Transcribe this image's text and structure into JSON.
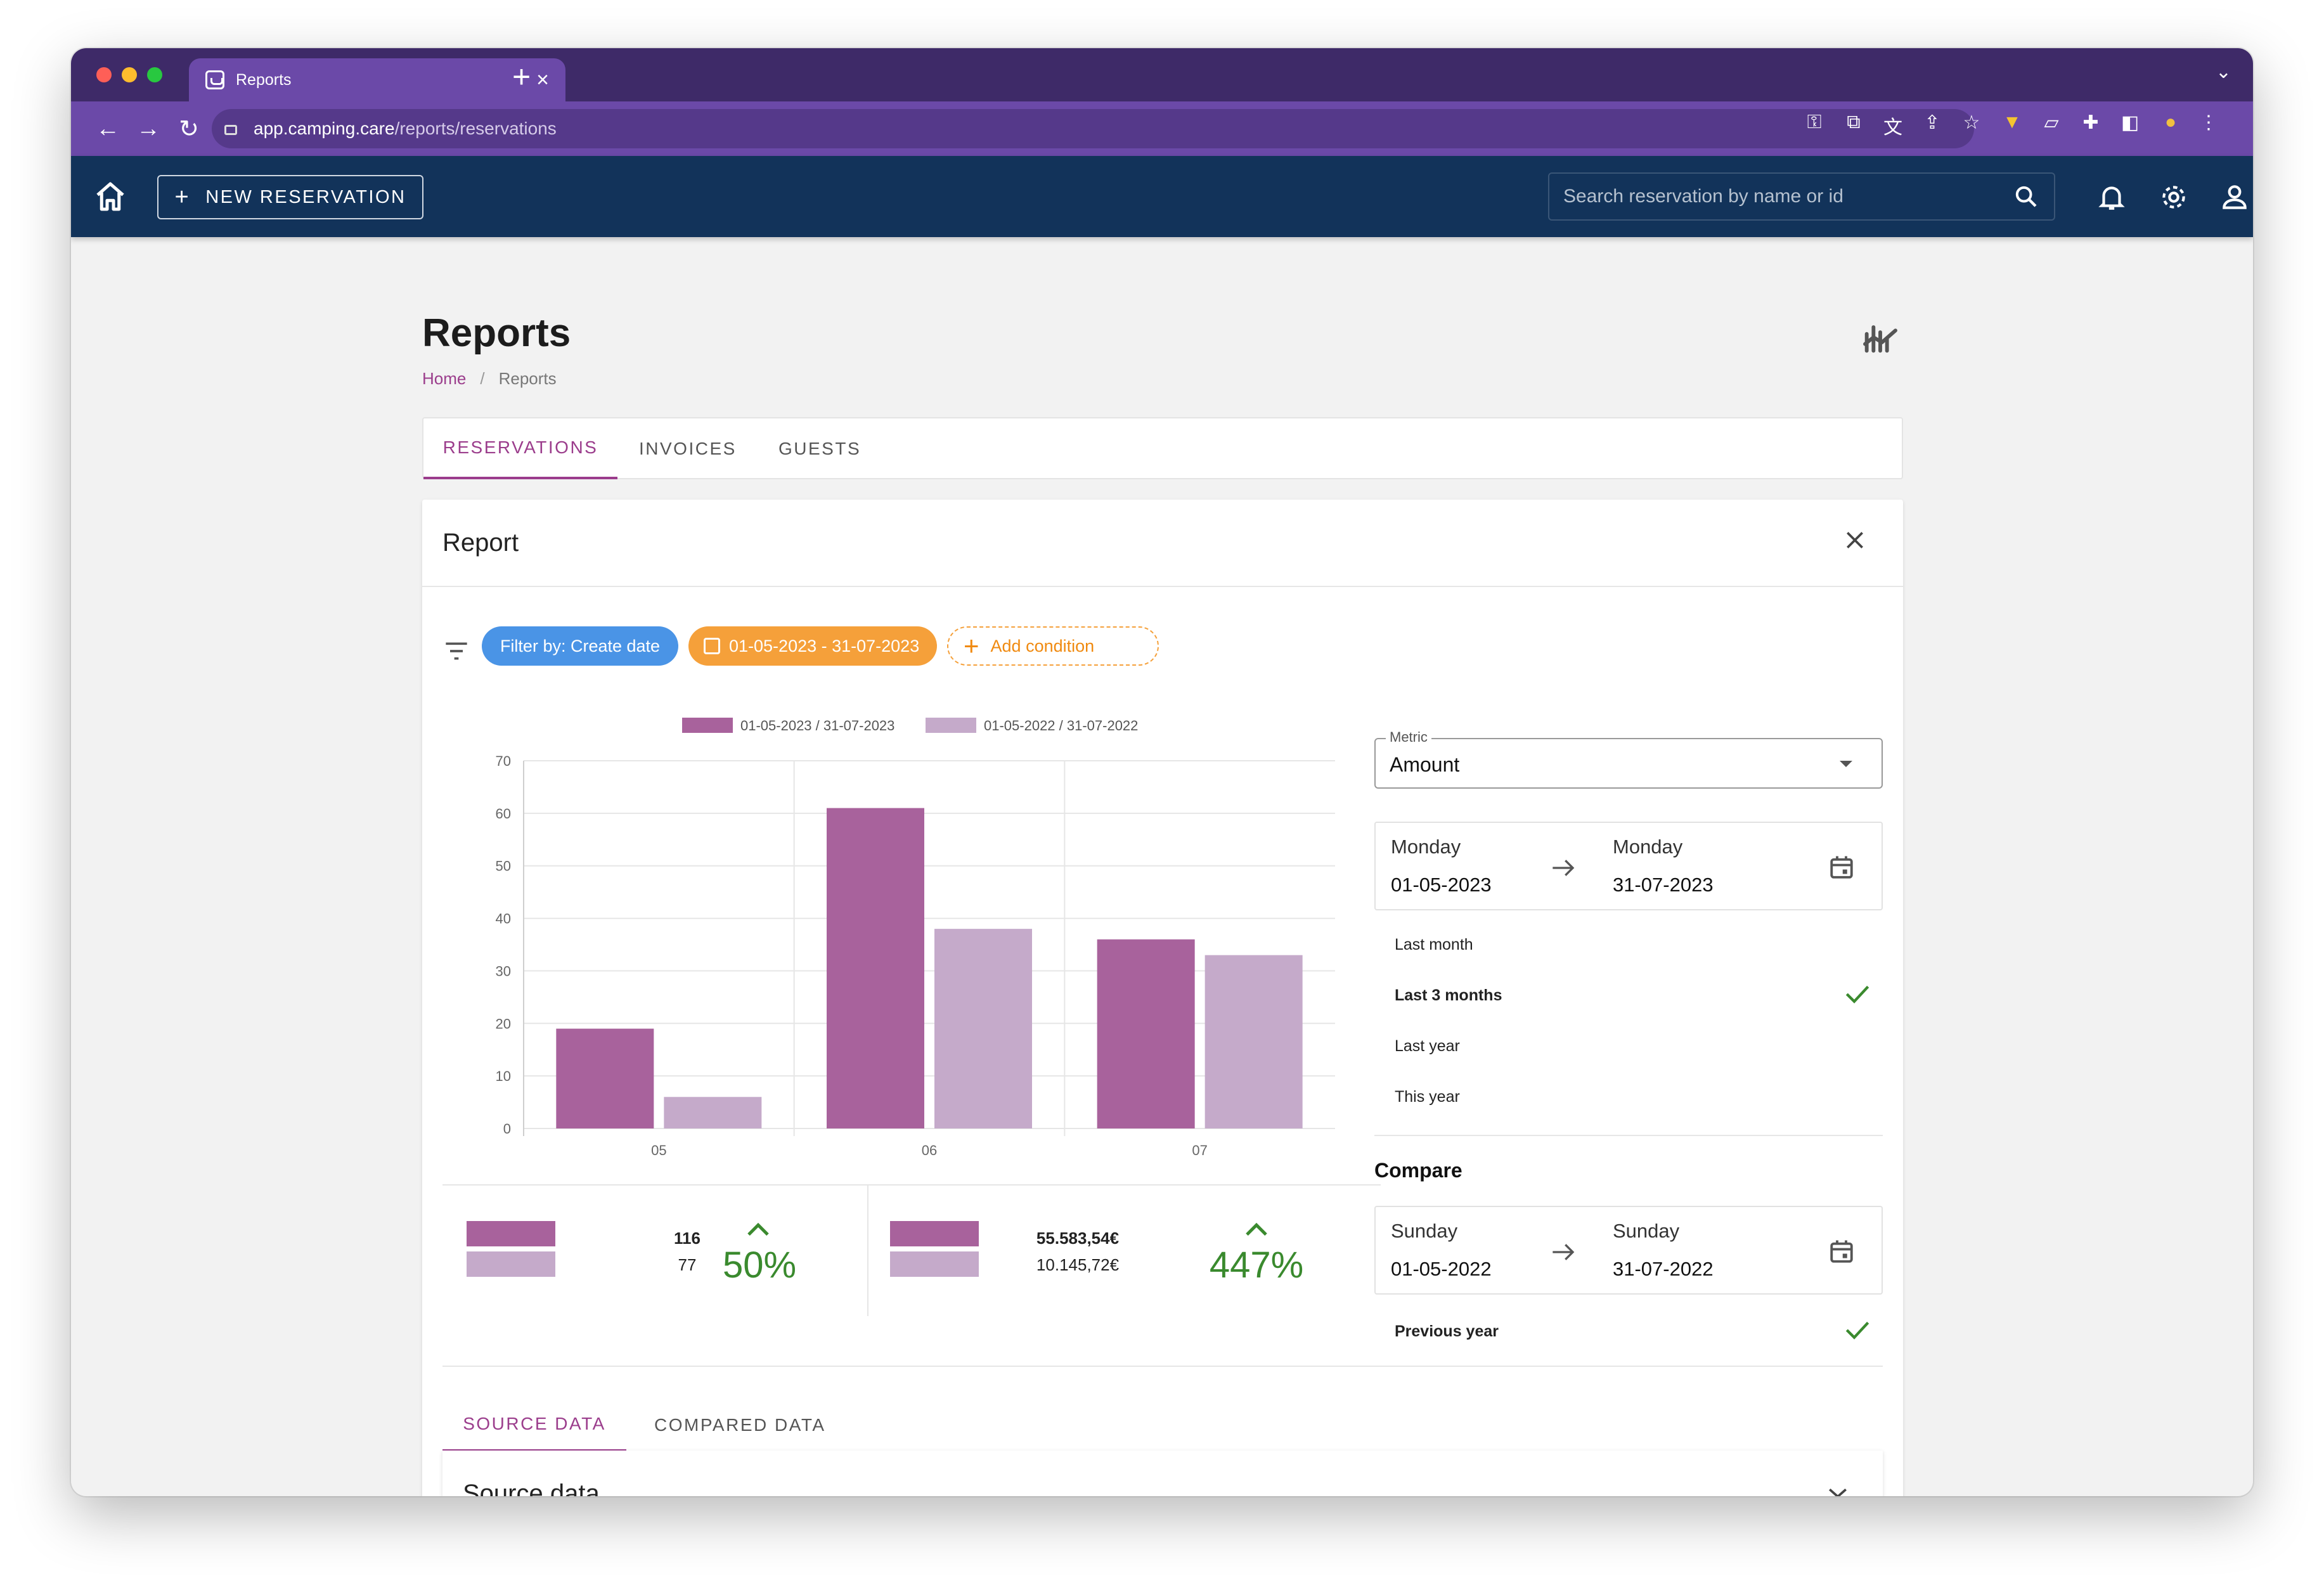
{
  "browser": {
    "tab_title": "Reports",
    "url_host": "app.camping.care",
    "url_path": "/reports/reservations"
  },
  "header": {
    "new_reservation_label": "NEW RESERVATION",
    "search_placeholder": "Search reservation by name or id"
  },
  "page": {
    "title": "Reports",
    "breadcrumb": [
      "Home",
      "Reports"
    ],
    "tabs": [
      "RESERVATIONS",
      "INVOICES",
      "GUESTS"
    ],
    "active_tab": "RESERVATIONS"
  },
  "report": {
    "title": "Report",
    "filters": {
      "filter_by": "Filter by: Create date",
      "date_range": "01-05-2023 - 31-07-2023",
      "add_condition": "Add condition"
    },
    "summary": [
      {
        "current": "116",
        "previous": "77",
        "change": "50%"
      },
      {
        "current": "55.583,54€",
        "previous": "10.145,72€",
        "change": "447%"
      }
    ],
    "metric": {
      "label": "Metric",
      "value": "Amount"
    },
    "range": {
      "start_day": "Monday",
      "start_date": "01-05-2023",
      "end_day": "Monday",
      "end_date": "31-07-2023"
    },
    "presets": [
      {
        "label": "Last month",
        "selected": false
      },
      {
        "label": "Last 3 months",
        "selected": true
      },
      {
        "label": "Last year",
        "selected": false
      },
      {
        "label": "This year",
        "selected": false
      }
    ],
    "compare": {
      "title": "Compare",
      "start_day": "Sunday",
      "start_date": "01-05-2022",
      "end_day": "Sunday",
      "end_date": "31-07-2022",
      "preset": "Previous year"
    },
    "data_tabs": [
      "SOURCE DATA",
      "COMPARED DATA"
    ],
    "active_data_tab": "SOURCE DATA",
    "source_panel_title": "Source data"
  },
  "colors": {
    "primary": "#9b3d8c",
    "series_current": "#a8629c",
    "series_previous": "#c5aaca",
    "appbar": "#12335a",
    "positive": "#3a8a2e"
  },
  "chart_data": {
    "type": "bar",
    "categories": [
      "05",
      "06",
      "07"
    ],
    "series": [
      {
        "name": "01-05-2023 / 31-07-2023",
        "values": [
          19,
          61,
          36
        ]
      },
      {
        "name": "01-05-2022 / 31-07-2022",
        "values": [
          6,
          38,
          33
        ]
      }
    ],
    "ylim": [
      0,
      70
    ],
    "yticks": [
      0,
      10,
      20,
      30,
      40,
      50,
      60,
      70
    ],
    "grid": true,
    "legend": "top"
  }
}
